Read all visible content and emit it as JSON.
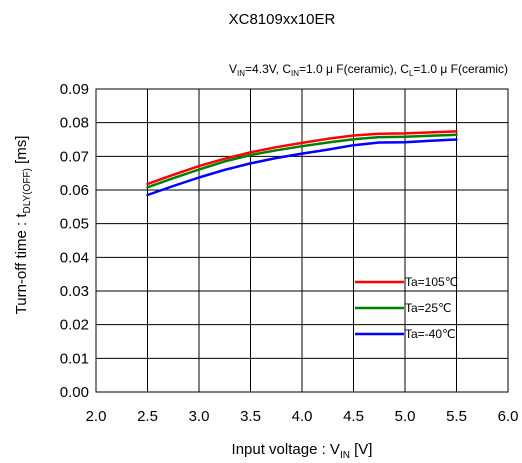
{
  "chart_data": {
    "type": "line",
    "title": "XC8109xx10ER",
    "conditions": {
      "vin_main": "V",
      "vin_sub": "IN",
      "vin_value": "=4.3V, ",
      "cin_main": "C",
      "cin_sub": "IN",
      "cin_value": "=1.0 μ F(ceramic), ",
      "cl_main": "C",
      "cl_sub": "L",
      "cl_value": "=1.0 μ F(ceramic)"
    },
    "xlabel": {
      "main": "Input voltage : V",
      "sub": "IN",
      "unit": " [V]"
    },
    "ylabel": {
      "main": "Turn-off time : t",
      "sub": "DLY(OFF)",
      "unit": " [ms]"
    },
    "xlim": [
      2.0,
      6.0
    ],
    "ylim": [
      0.0,
      0.09
    ],
    "xticks": [
      "2.0",
      "2.5",
      "3.0",
      "3.5",
      "4.0",
      "4.5",
      "5.0",
      "5.5",
      "6.0"
    ],
    "yticks": [
      "0.00",
      "0.01",
      "0.02",
      "0.03",
      "0.04",
      "0.05",
      "0.06",
      "0.07",
      "0.08",
      "0.09"
    ],
    "grid": true,
    "legend_position": "bottom-right",
    "series": [
      {
        "name": "Ta=105℃",
        "color": "#ff0000",
        "x": [
          2.5,
          2.75,
          3.0,
          3.25,
          3.5,
          3.75,
          4.0,
          4.25,
          4.5,
          4.75,
          5.0,
          5.25,
          5.5
        ],
        "y": [
          0.0618,
          0.0645,
          0.0671,
          0.0693,
          0.0712,
          0.0727,
          0.074,
          0.0752,
          0.0762,
          0.0767,
          0.0768,
          0.0771,
          0.0774
        ]
      },
      {
        "name": "Ta=25℃",
        "color": "#008000",
        "x": [
          2.5,
          2.75,
          3.0,
          3.25,
          3.5,
          3.75,
          4.0,
          4.25,
          4.5,
          4.75,
          5.0,
          5.25,
          5.5
        ],
        "y": [
          0.0608,
          0.0635,
          0.0661,
          0.0685,
          0.0704,
          0.0718,
          0.073,
          0.0741,
          0.0751,
          0.0757,
          0.0758,
          0.0761,
          0.0764
        ]
      },
      {
        "name": "Ta=-40℃",
        "color": "#0000ff",
        "x": [
          2.5,
          2.75,
          3.0,
          3.25,
          3.5,
          3.75,
          4.0,
          4.25,
          4.5,
          4.75,
          5.0,
          5.25,
          5.5
        ],
        "y": [
          0.0585,
          0.0612,
          0.0637,
          0.066,
          0.0679,
          0.0695,
          0.0708,
          0.072,
          0.0733,
          0.0741,
          0.0742,
          0.0746,
          0.075
        ]
      }
    ]
  }
}
